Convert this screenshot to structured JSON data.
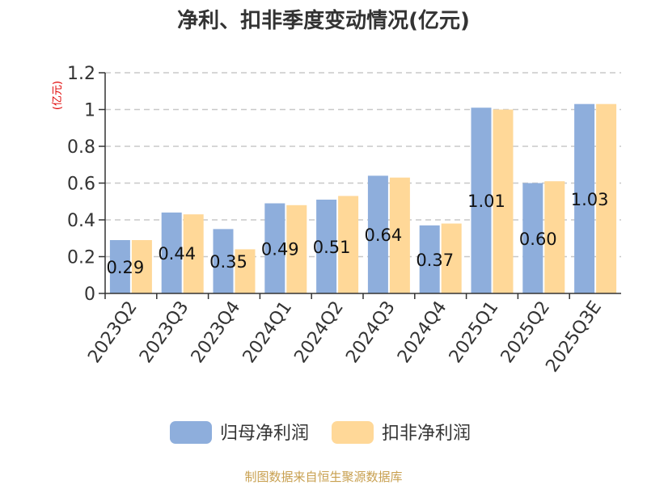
{
  "chart_data": {
    "type": "bar",
    "title": "净利、扣非季度变动情况(亿元)",
    "ylabel": "(亿元)",
    "xlabel": "",
    "ylim": [
      0,
      1.2
    ],
    "yticks": [
      "0",
      "0.2",
      "0.4",
      "0.6",
      "0.8",
      "1",
      "1.2"
    ],
    "ytick_values": [
      0,
      0.2,
      0.4,
      0.6,
      0.8,
      1.0,
      1.2
    ],
    "grid": true,
    "legend_position": "bottom",
    "categories": [
      "2023Q2",
      "2023Q3",
      "2023Q4",
      "2024Q1",
      "2024Q2",
      "2024Q3",
      "2024Q4",
      "2025Q1",
      "2025Q2",
      "2025Q3E"
    ],
    "series": [
      {
        "name": "归母净利润",
        "color": "#8eaedc",
        "values": [
          0.29,
          0.44,
          0.35,
          0.49,
          0.51,
          0.64,
          0.37,
          1.01,
          0.6,
          1.03
        ]
      },
      {
        "name": "扣非净利润",
        "color": "#ffd898",
        "values": [
          0.29,
          0.43,
          0.24,
          0.48,
          0.53,
          0.63,
          0.38,
          1.0,
          0.61,
          1.03
        ]
      }
    ],
    "data_labels": [
      "0.29",
      "0.44",
      "0.35",
      "0.49",
      "0.51",
      "0.64",
      "0.37",
      "1.01",
      "0.60",
      "1.03"
    ]
  },
  "source": "制图数据来自恒生聚源数据库"
}
